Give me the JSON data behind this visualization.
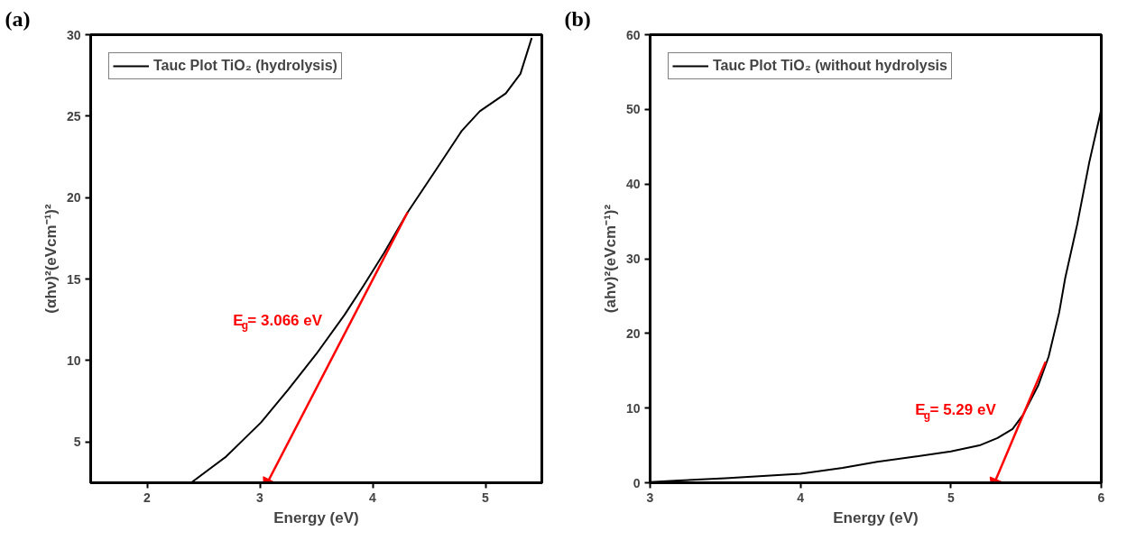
{
  "chart_data": [
    {
      "type": "line",
      "xlabel": "Energy (eV)",
      "ylabel": "(αhν)²(eVcm⁻¹)²",
      "xlim": [
        1.5,
        5.5
      ],
      "ylim": [
        2.5,
        30
      ],
      "xticks": [
        2,
        3,
        4,
        5
      ],
      "yticks": [
        5,
        10,
        15,
        20,
        25,
        30
      ],
      "grid": false,
      "legend": "top left",
      "annotations": [
        "(a)",
        "E$_{g}$= 3.066 eV"
      ],
      "series": [
        {
          "name": "Tauc Plot TiO₂ (hydrolysis)",
          "color": "#000000",
          "x": [
            2.39,
            2.7,
            3.01,
            3.25,
            3.5,
            3.75,
            3.92,
            4.1,
            4.31,
            4.57,
            4.79,
            4.95,
            5.18,
            5.31,
            5.41
          ],
          "values": [
            2.5,
            4.1,
            6.2,
            8.2,
            10.4,
            12.8,
            14.6,
            16.6,
            19.1,
            21.8,
            24.1,
            25.3,
            26.4,
            27.6,
            29.8
          ]
        },
        {
          "type": "line",
          "color": "#ff0000",
          "x": [
            4.31,
            3.066
          ],
          "values": [
            19.1,
            2.5
          ]
        }
      ]
    },
    {
      "type": "line",
      "xlabel": "Energy (eV)",
      "ylabel": "(ahν)²(eVcm⁻¹)²",
      "xlim": [
        3,
        6
      ],
      "ylim": [
        0,
        60
      ],
      "xticks": [
        3,
        4,
        5,
        6
      ],
      "yticks": [
        0,
        10,
        20,
        30,
        40,
        50,
        60
      ],
      "grid": false,
      "legend": "top left",
      "annotations": [
        "(b)",
        "E$_{g}$= 5.29 eV"
      ],
      "series": [
        {
          "name": "Tauc Plot TiO₂ (without hydrolysis",
          "color": "#000000",
          "x": [
            3.0,
            3.19,
            3.5,
            4.0,
            4.28,
            4.51,
            4.76,
            5.0,
            5.19,
            5.31,
            5.41,
            5.48,
            5.58,
            5.65,
            5.72,
            5.76,
            5.84,
            5.92,
            6.0
          ],
          "values": [
            0.1,
            0.3,
            0.6,
            1.2,
            2.0,
            2.8,
            3.5,
            4.2,
            5.0,
            6.0,
            7.2,
            9.1,
            13.0,
            16.9,
            22.8,
            27.4,
            34.6,
            42.9,
            50.0
          ]
        },
        {
          "type": "line",
          "color": "#ff0000",
          "x": [
            5.63,
            5.29
          ],
          "values": [
            16.2,
            0
          ]
        }
      ]
    }
  ]
}
